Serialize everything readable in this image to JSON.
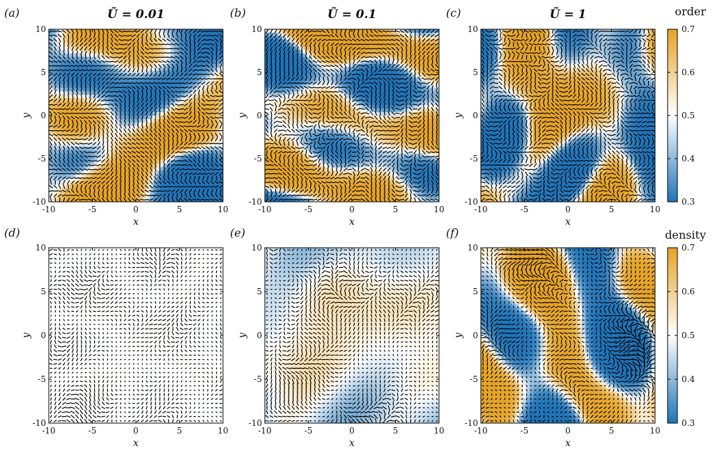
{
  "figure": {
    "panel_letters": [
      "(a)",
      "(b)",
      "(c)",
      "(d)",
      "(e)",
      "(f)"
    ],
    "column_titles": [
      "Ũ = 0.01",
      "Ũ = 0.1",
      "Ũ = 1"
    ],
    "colorbar_top_label": "order",
    "colorbar_bottom_label": "density"
  },
  "chart_data": [
    {
      "type": "heatmap",
      "panel": "(a)",
      "title": "Ũ = 0.01",
      "quantity": "order",
      "xlabel": "x",
      "ylabel": "y",
      "xlim": [
        -10,
        10
      ],
      "ylim": [
        -10,
        10
      ],
      "xticks": [
        "-10",
        "-5",
        "0",
        "5",
        "10"
      ],
      "yticks": [
        "-10",
        "-5",
        "0",
        "5",
        "10"
      ],
      "field_seed": 11,
      "contrast": 3.2,
      "arrow_scale": 1.0,
      "overlay": "director field (unit-length segments)"
    },
    {
      "type": "heatmap",
      "panel": "(b)",
      "title": "Ũ = 0.1",
      "quantity": "order",
      "xlabel": "x",
      "ylabel": "y",
      "xlim": [
        -10,
        10
      ],
      "ylim": [
        -10,
        10
      ],
      "xticks": [
        "-10",
        "-5",
        "0",
        "5",
        "10"
      ],
      "yticks": [
        "-10",
        "-5",
        "0",
        "5",
        "10"
      ],
      "field_seed": 23,
      "contrast": 3.2,
      "arrow_scale": 1.0,
      "overlay": "director field (unit-length segments)"
    },
    {
      "type": "heatmap",
      "panel": "(c)",
      "title": "Ũ = 1",
      "quantity": "order",
      "xlabel": "x",
      "ylabel": "y",
      "xlim": [
        -10,
        10
      ],
      "ylim": [
        -10,
        10
      ],
      "xticks": [
        "-10",
        "-5",
        "0",
        "5",
        "10"
      ],
      "yticks": [
        "-10",
        "-5",
        "0",
        "5",
        "10"
      ],
      "field_seed": 37,
      "contrast": 3.2,
      "arrow_scale": 1.0,
      "overlay": "director field (unit-length segments)"
    },
    {
      "type": "heatmap",
      "panel": "(d)",
      "quantity": "density",
      "xlabel": "x",
      "ylabel": "y",
      "xlim": [
        -10,
        10
      ],
      "ylim": [
        -10,
        10
      ],
      "xticks": [
        "-10",
        "-5",
        "0",
        "5",
        "10"
      ],
      "yticks": [
        "-10",
        "-5",
        "0",
        "5",
        "10"
      ],
      "field_seed": 41,
      "contrast": 0.02,
      "arrow_scale": 0.8,
      "overlay": "velocity field (variable-length segments)"
    },
    {
      "type": "heatmap",
      "panel": "(e)",
      "quantity": "density",
      "xlabel": "x",
      "ylabel": "y",
      "xlim": [
        -10,
        10
      ],
      "ylim": [
        -10,
        10
      ],
      "xticks": [
        "-10",
        "-5",
        "0",
        "5",
        "10"
      ],
      "yticks": [
        "-10",
        "-5",
        "0",
        "5",
        "10"
      ],
      "field_seed": 53,
      "contrast": 0.5,
      "arrow_scale": 0.9,
      "overlay": "velocity field (variable-length segments)"
    },
    {
      "type": "heatmap",
      "panel": "(f)",
      "quantity": "density",
      "xlabel": "x",
      "ylabel": "y",
      "xlim": [
        -10,
        10
      ],
      "ylim": [
        -10,
        10
      ],
      "xticks": [
        "-10",
        "-5",
        "0",
        "5",
        "10"
      ],
      "yticks": [
        "-10",
        "-5",
        "0",
        "5",
        "10"
      ],
      "field_seed": 67,
      "contrast": 4.0,
      "arrow_scale": 1.0,
      "overlay": "velocity field (variable-length segments)"
    }
  ],
  "colorbars": [
    {
      "label": "order",
      "range": [
        0.3,
        0.7
      ],
      "ticks": [
        "0.3",
        "0.4",
        "0.5",
        "0.6",
        "0.7"
      ]
    },
    {
      "label": "density",
      "range": [
        0.3,
        0.7
      ],
      "ticks": [
        "0.3",
        "0.4",
        "0.5",
        "0.6",
        "0.7"
      ]
    }
  ],
  "colormap": {
    "low": "#1f74b8",
    "mid": "#ffffff",
    "high": "#e5a325"
  }
}
